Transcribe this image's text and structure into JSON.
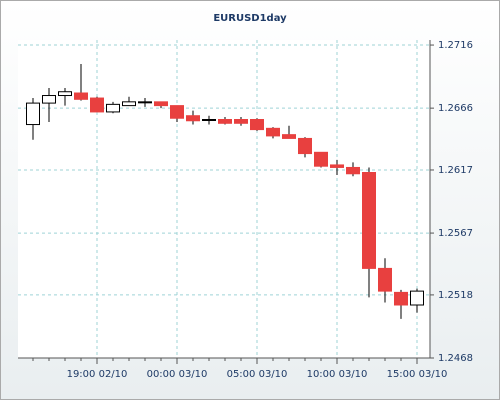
{
  "chart_data": {
    "type": "candlestick",
    "title": "EURUSD1day",
    "categories": [
      null,
      null,
      null,
      null,
      "19:00 02/10",
      null,
      null,
      null,
      null,
      "00:00 03/10",
      null,
      null,
      null,
      null,
      "05:00 03/10",
      null,
      null,
      null,
      null,
      "10:00 03/10",
      null,
      null,
      null,
      null,
      "15:00 03/10"
    ],
    "open": [
      1.2653,
      1.267,
      1.2676,
      1.2678,
      1.2674,
      1.2663,
      1.2668,
      1.2671,
      1.2671,
      1.2668,
      1.266,
      1.2657,
      1.2657,
      1.2657,
      1.2657,
      1.265,
      1.2645,
      1.2642,
      1.2631,
      1.2621,
      1.2619,
      1.2615,
      1.2539,
      1.252,
      1.251
    ],
    "high": [
      1.2674,
      1.2682,
      1.2682,
      1.2701,
      1.2675,
      1.2671,
      1.2675,
      1.2674,
      1.2671,
      1.2668,
      1.2664,
      1.266,
      1.2659,
      1.2659,
      1.2658,
      1.2651,
      1.2652,
      1.2643,
      1.2631,
      1.2625,
      1.2623,
      1.2619,
      1.2547,
      1.2522,
      1.2523
    ],
    "low": [
      1.2641,
      1.2655,
      1.2668,
      1.2672,
      1.2663,
      1.2662,
      1.2668,
      1.2667,
      1.2666,
      1.2655,
      1.2653,
      1.2653,
      1.2653,
      1.2652,
      1.2648,
      1.2642,
      1.2642,
      1.2627,
      1.2619,
      1.2613,
      1.2612,
      1.2516,
      1.2512,
      1.2499,
      1.2504
    ],
    "close": [
      1.267,
      1.2676,
      1.2679,
      1.2673,
      1.2663,
      1.2669,
      1.2671,
      1.2671,
      1.2668,
      1.2658,
      1.2656,
      1.2657,
      1.2654,
      1.2654,
      1.2649,
      1.2644,
      1.2642,
      1.263,
      1.262,
      1.2619,
      1.2614,
      1.2539,
      1.2521,
      1.251,
      1.2521
    ],
    "up_color": "#ffffff",
    "down_color": "#e8403f",
    "wick_color": "#000000",
    "ylim": [
      1.2468,
      1.272
    ],
    "yticks": [
      1.2468,
      1.2518,
      1.2567,
      1.2617,
      1.2666,
      1.2716
    ],
    "grid": true
  }
}
